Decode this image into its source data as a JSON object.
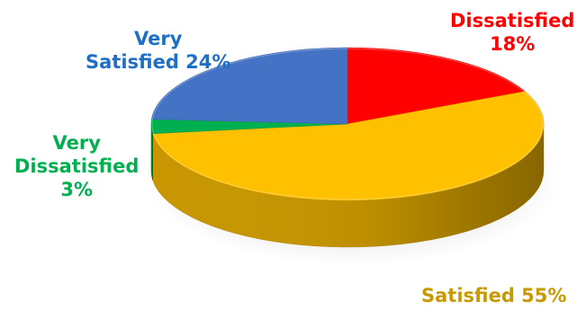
{
  "chart_data": {
    "type": "pie",
    "style": "3d",
    "slices": [
      {
        "label": "Dissatisfied",
        "value": 18,
        "color": "#FF0000"
      },
      {
        "label": "Satisfied",
        "value": 55,
        "color": "#FFC000"
      },
      {
        "label": "Very Dissatisfied",
        "value": 3,
        "color": "#00B050"
      },
      {
        "label": "Very Satisfied",
        "value": 24,
        "color": "#4472C4"
      }
    ],
    "labels": {
      "dissatisfied": {
        "line1": "Dissatisfied",
        "line2": "18%"
      },
      "satisfied": {
        "line1": "Satisfied 55%"
      },
      "very_dissatisfied": {
        "line1": "Very",
        "line2": "Dissatisfied",
        "line3": "3%"
      },
      "very_satisfied": {
        "line1": "Very",
        "line2": "Satisfied 24%"
      }
    }
  }
}
